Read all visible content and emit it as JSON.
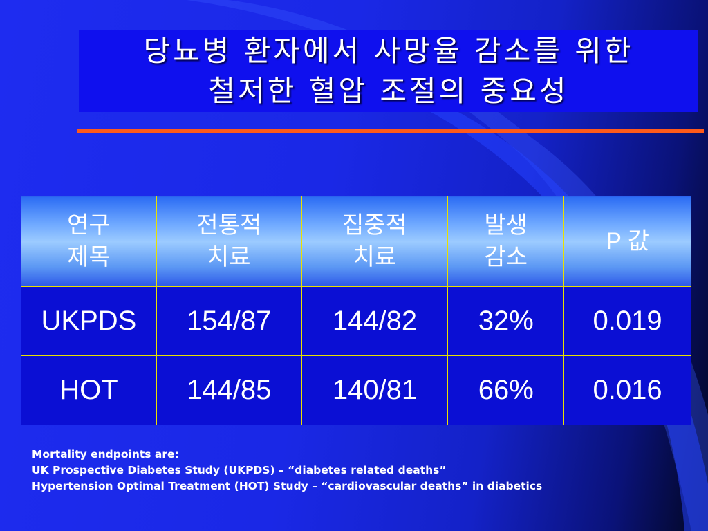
{
  "title": {
    "line1": "당뇨병 환자에서 사망율 감소를 위한",
    "line2": "철저한 혈압 조절의 중요성"
  },
  "table": {
    "headers": [
      [
        "연구",
        "제목"
      ],
      [
        "전통적",
        "치료"
      ],
      [
        "집중적",
        "치료"
      ],
      [
        "발생",
        "감소"
      ],
      [
        "P 값"
      ]
    ],
    "rows": [
      [
        "UKPDS",
        "154/87",
        "144/82",
        "32%",
        "0.019"
      ],
      [
        "HOT",
        "144/85",
        "140/81",
        "66%",
        "0.016"
      ]
    ]
  },
  "notes": [
    "Mortality endpoints are:",
    "UK Prospective Diabetes Study (UKPDS) – “diabetes related deaths”",
    "Hypertension Optimal Treatment (HOT) Study – “cardiovascular deaths” in diabetics"
  ],
  "colors": {
    "background": "#1a28e6",
    "title_box": "#0f10ee",
    "rule": "#ff5a1a",
    "cell_border": "#e8e000",
    "header_fill": "#9ccbff",
    "body_fill": "#0b0fd4"
  }
}
